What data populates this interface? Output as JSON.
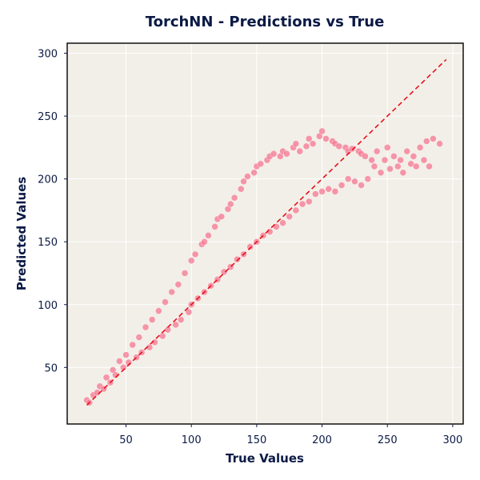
{
  "chart_data": {
    "type": "scatter",
    "title": "TorchNN - Predictions vs True",
    "xlabel": "True Values",
    "ylabel": "Predicted Values",
    "xlim": [
      5,
      308
    ],
    "ylim": [
      5,
      308
    ],
    "xticks": [
      50,
      100,
      150,
      200,
      250,
      300
    ],
    "yticks": [
      50,
      100,
      150,
      200,
      250,
      300
    ],
    "grid": true,
    "background_color": "#f2efe8",
    "point_color": "#f56f8b",
    "reference_line_color": "#e8101a",
    "series": [
      {
        "kind": "reference-line",
        "style": "dashed",
        "x": [
          20,
          295
        ],
        "y": [
          20,
          295
        ]
      },
      {
        "kind": "points",
        "x": [
          20,
          22,
          25,
          28,
          30,
          33,
          35,
          38,
          40,
          42,
          45,
          48,
          50,
          52,
          55,
          58,
          60,
          62,
          65,
          68,
          70,
          72,
          75,
          78,
          80,
          82,
          85,
          88,
          90,
          92,
          95,
          98,
          100,
          100,
          103,
          105,
          108,
          110,
          110,
          113,
          115,
          118,
          120,
          120,
          123,
          125,
          128,
          130,
          130,
          133,
          135,
          138,
          140,
          140,
          143,
          145,
          148,
          150,
          150,
          153,
          155,
          158,
          160,
          160,
          163,
          165,
          168,
          170,
          170,
          173,
          175,
          178,
          180,
          180,
          183,
          185,
          188,
          190,
          190,
          193,
          195,
          198,
          200,
          200,
          203,
          205,
          208,
          210,
          210,
          213,
          215,
          218,
          220,
          220,
          223,
          225,
          228,
          230,
          230,
          233,
          235,
          238,
          240,
          242,
          245,
          248,
          250,
          252,
          255,
          258,
          260,
          262,
          265,
          268,
          270,
          272,
          275,
          278,
          280,
          282,
          285,
          290
        ],
        "y": [
          24,
          22,
          28,
          30,
          35,
          33,
          42,
          38,
          48,
          44,
          55,
          50,
          60,
          54,
          68,
          58,
          74,
          62,
          82,
          66,
          88,
          70,
          95,
          75,
          102,
          80,
          110,
          84,
          116,
          88,
          125,
          94,
          135,
          100,
          140,
          105,
          148,
          150,
          110,
          155,
          115,
          162,
          168,
          120,
          170,
          126,
          176,
          180,
          130,
          185,
          136,
          192,
          198,
          140,
          202,
          146,
          205,
          210,
          150,
          212,
          155,
          215,
          218,
          158,
          220,
          162,
          218,
          222,
          165,
          220,
          170,
          225,
          228,
          175,
          222,
          180,
          226,
          232,
          182,
          228,
          188,
          234,
          238,
          190,
          232,
          192,
          230,
          228,
          190,
          226,
          195,
          225,
          222,
          200,
          224,
          198,
          222,
          220,
          195,
          218,
          200,
          215,
          210,
          222,
          205,
          215,
          225,
          208,
          218,
          210,
          215,
          205,
          222,
          212,
          218,
          210,
          225,
          215,
          230,
          210,
          232,
          228
        ]
      }
    ]
  }
}
